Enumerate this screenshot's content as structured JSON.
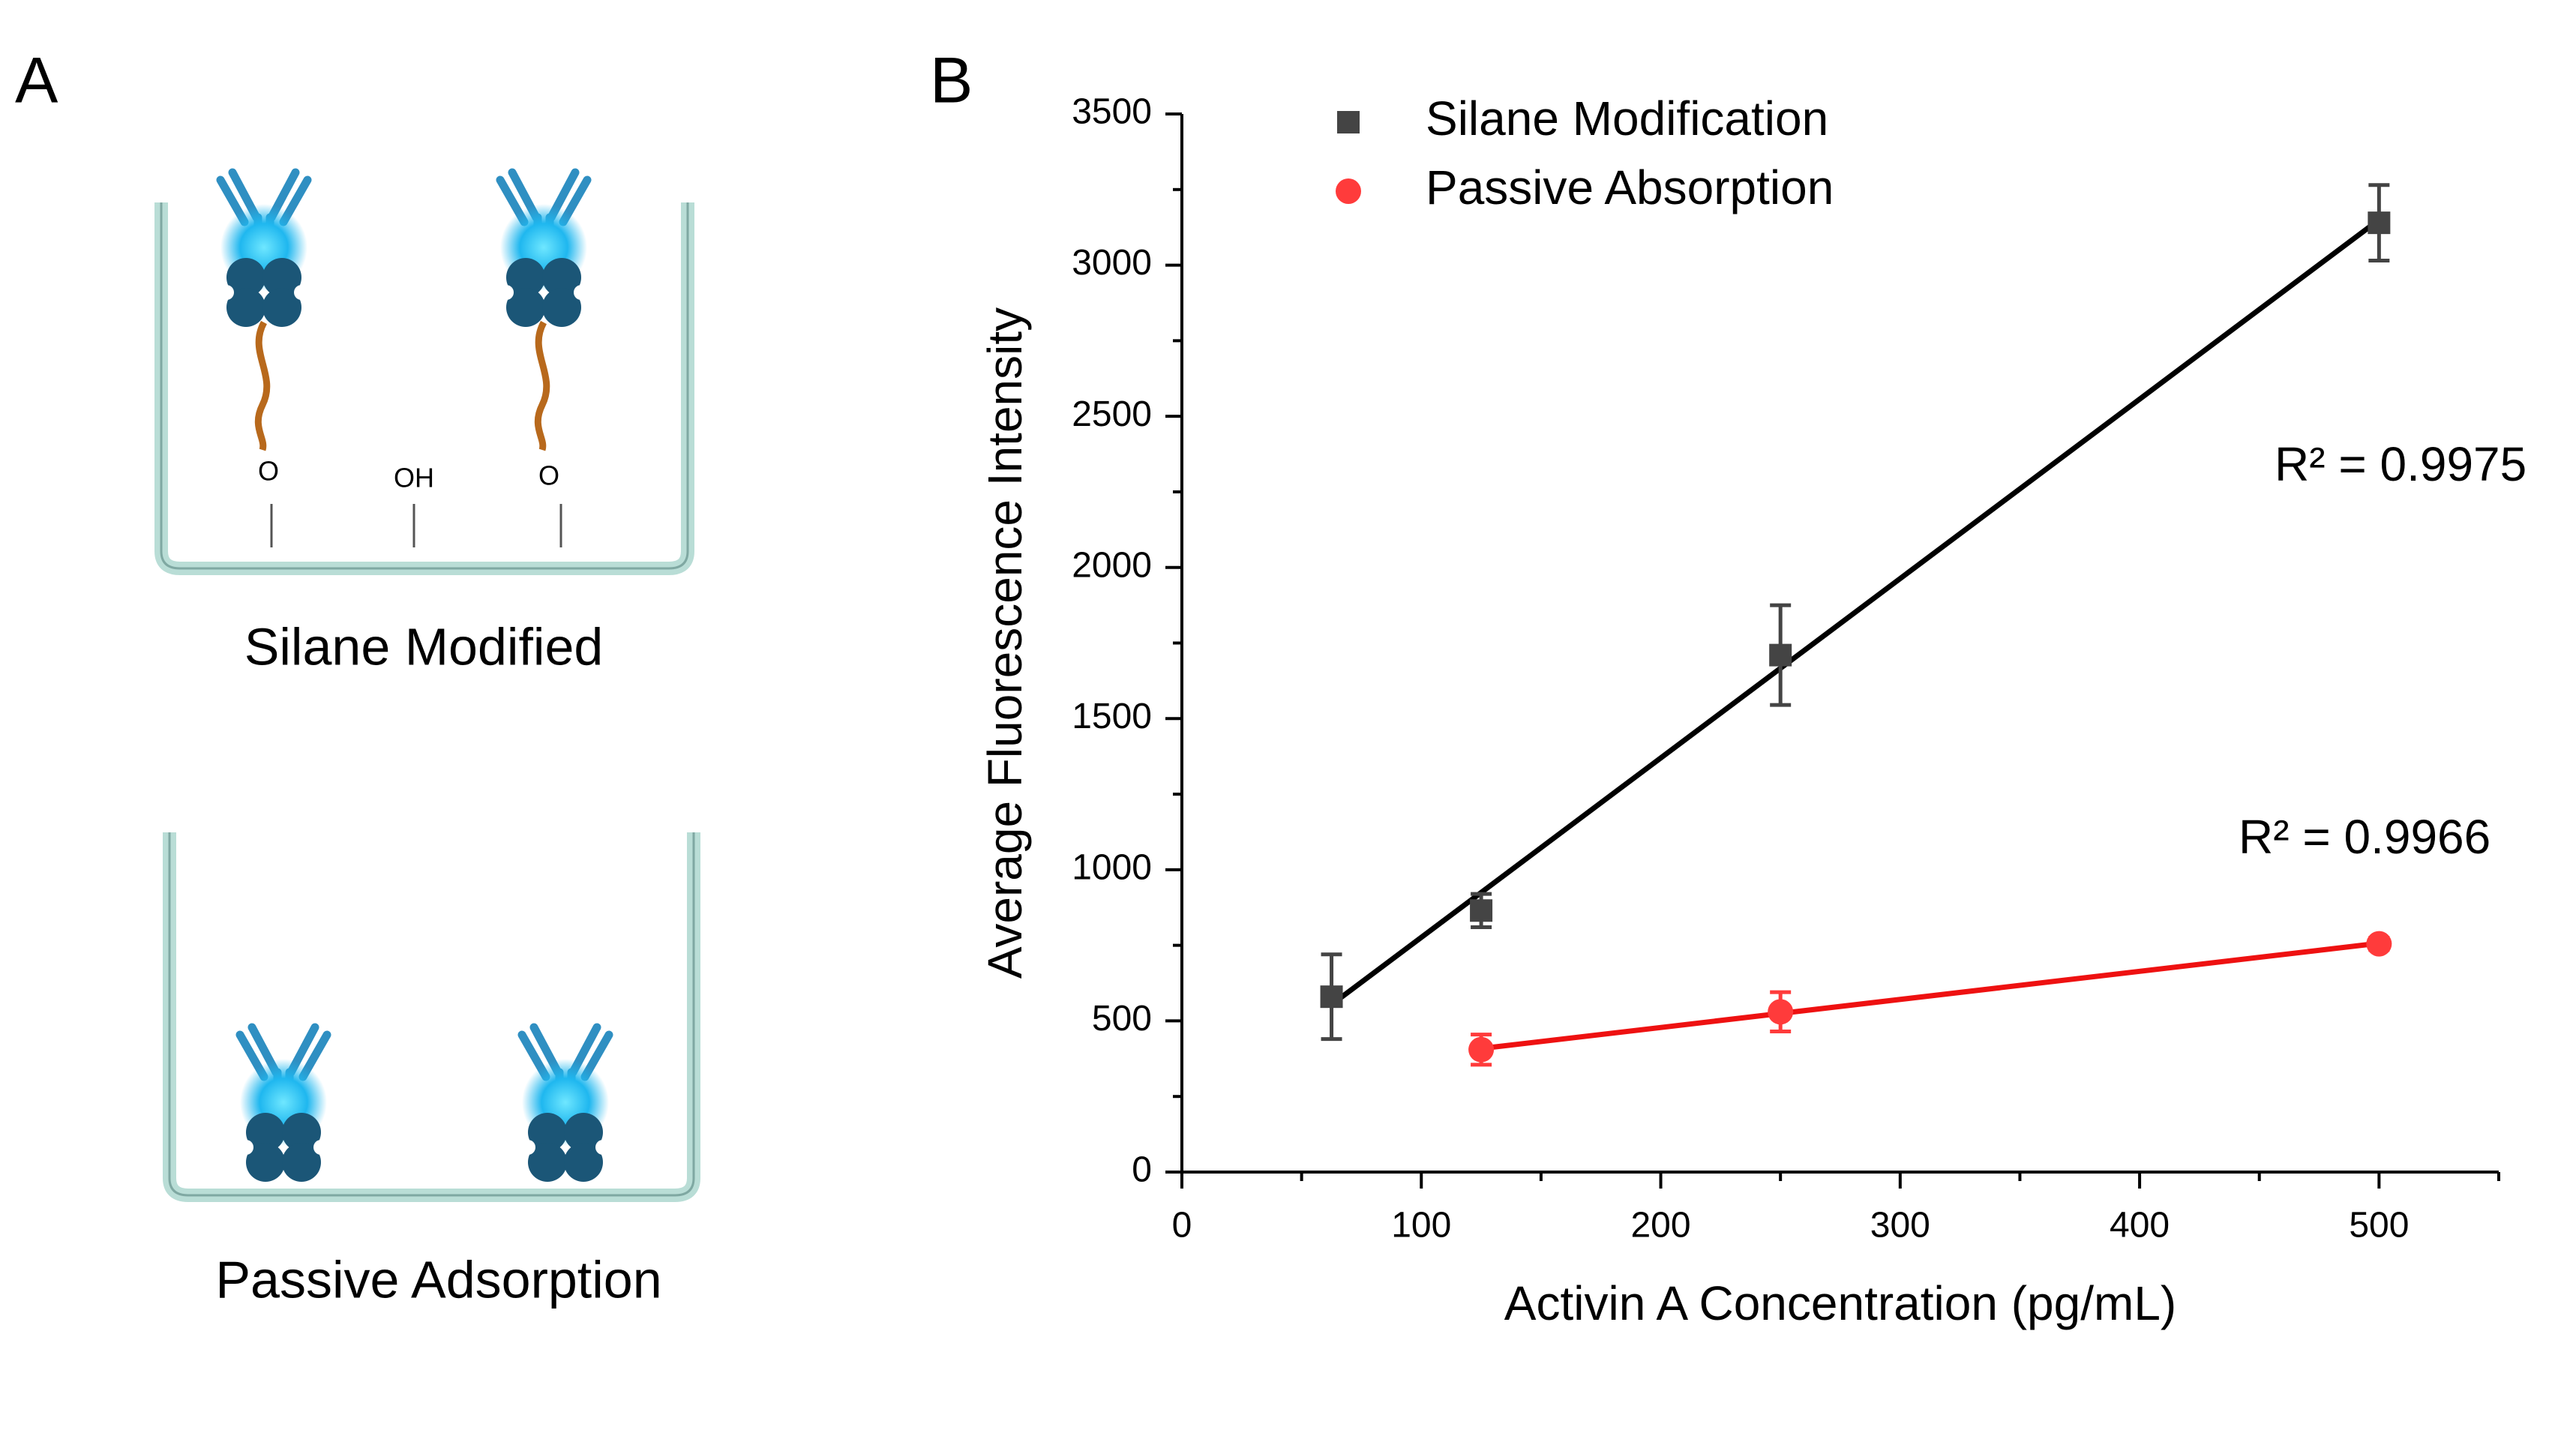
{
  "panel_a": {
    "label": "A",
    "wells": [
      {
        "caption": "Silane Modified",
        "surface_labels": [
          "O",
          "OH",
          "O"
        ]
      },
      {
        "caption": "Passive Adsorption"
      }
    ]
  },
  "panel_b": {
    "label": "B"
  },
  "chart_data": {
    "type": "scatter",
    "x_label": "Activin A Concentration (pg/mL)",
    "y_label": "Average Fluorescence Intensity",
    "xlim": [
      0,
      550
    ],
    "xticks": [
      0,
      100,
      200,
      300,
      400,
      500
    ],
    "ylim": [
      0,
      3500
    ],
    "yticks": [
      0,
      500,
      1000,
      1500,
      2000,
      2500,
      3000,
      3500
    ],
    "minor_ticks": true,
    "legend": "top-left",
    "fit_lines": true,
    "series": [
      {
        "name": "Silane Modification",
        "marker": "square",
        "color": "#444444",
        "line_color": "#000000",
        "x": [
          62.5,
          125,
          250,
          500
        ],
        "values": [
          580,
          865,
          1710,
          3140
        ],
        "errors": [
          140,
          55,
          165,
          125
        ]
      },
      {
        "name": "Passive Absorption",
        "marker": "circle",
        "color": "#ff3b3b",
        "line_color": "#ee1111",
        "x": [
          125,
          250,
          500
        ],
        "values": [
          405,
          530,
          755
        ],
        "errors": [
          50,
          65,
          20
        ]
      }
    ],
    "annotations": [
      {
        "text": "R² = 0.9975"
      },
      {
        "text": "R² = 0.9966"
      }
    ]
  }
}
